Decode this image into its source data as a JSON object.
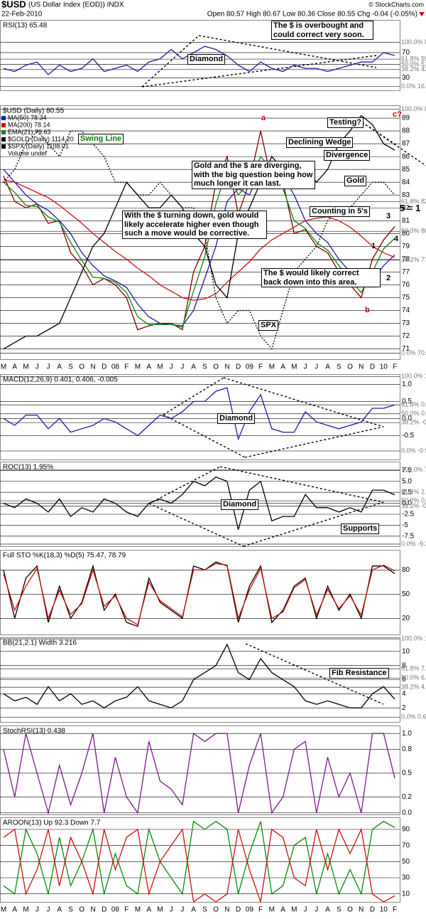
{
  "header": {
    "symbol": "$USD",
    "description": "(US Dollar Index (EOD)) INDX",
    "date": "22-Feb-2010",
    "quote": "Open 80.57  High 80.67  Low 80.36  Close 80.55  Chg -0.04 (-0.05%)",
    "credit": "© StockCharts.com"
  },
  "chart_data": [
    {
      "type": "line",
      "title": "RSI(13) 65.48",
      "ylim": [
        10,
        122
      ],
      "yticks": [
        30,
        70
      ],
      "grid": true,
      "series": [
        {
          "color": "#1f1fa8",
          "values": [
            45,
            40,
            50,
            55,
            35,
            50,
            40,
            45,
            60,
            40,
            45,
            50,
            40,
            55,
            60,
            75,
            60,
            70,
            80,
            75,
            65,
            50,
            40,
            55,
            45,
            40,
            50,
            45,
            45,
            40,
            45,
            50,
            55,
            55,
            70,
            65.48
          ]
        }
      ],
      "fib_levels": [
        {
          "value": 86.45,
          "label": "100.0% 86.45"
        },
        {
          "value": 59.64,
          "label": "61.8% 59.64"
        },
        {
          "value": 51.35,
          "label": "50.0% 51.35"
        },
        {
          "value": 43.06,
          "label": "38.2% 43.06"
        },
        {
          "value": 16.22,
          "label": "0.0% 16.22"
        }
      ],
      "annotations": [
        "The $ is overbought and could correct very soon.",
        "Diamond"
      ]
    },
    {
      "type": "line",
      "title": "$USD (Daily) 80.55",
      "ylim": [
        70.2,
        90
      ],
      "yticks": [
        71,
        72,
        73,
        74,
        75,
        76,
        77,
        78,
        79,
        80,
        81,
        82,
        83,
        84,
        85,
        86,
        87,
        88,
        89
      ],
      "grid": true,
      "categories": [
        "M",
        "A",
        "M",
        "J",
        "J",
        "A",
        "S",
        "O",
        "N",
        "D",
        "08",
        "F",
        "M",
        "A",
        "M",
        "J",
        "J",
        "A",
        "S",
        "O",
        "N",
        "D",
        "09",
        "F",
        "M",
        "A",
        "M",
        "J",
        "J",
        "A",
        "S",
        "O",
        "N",
        "D",
        "10",
        "F"
      ],
      "series": [
        {
          "name": "$USD (Daily) 80.55",
          "color": "#800000",
          "style": "solid",
          "values": [
            84.5,
            82.5,
            82,
            82.3,
            80.8,
            81,
            78.5,
            77.5,
            76,
            76.5,
            76,
            75,
            72.5,
            72.8,
            73,
            73,
            72.5,
            77,
            79,
            84,
            86,
            81.5,
            84,
            88,
            84,
            84,
            80,
            80.3,
            79,
            78.5,
            77,
            76,
            75,
            78,
            79.5,
            80.55
          ]
        },
        {
          "name": "MA(50) 78.34",
          "color": "#1c1cb0",
          "style": "solid",
          "values": [
            85,
            84,
            83,
            82.3,
            81.8,
            81,
            80,
            78.5,
            77.5,
            76.7,
            76.3,
            75.8,
            74.5,
            73.5,
            73,
            72.9,
            72.8,
            74,
            76.5,
            79,
            82.5,
            83.5,
            83,
            85,
            85,
            84.5,
            83,
            81,
            80,
            79.3,
            78,
            77,
            76.2,
            76.3,
            77.5,
            78.34
          ]
        },
        {
          "name": "MA(200) 78.14",
          "color": "#d01010",
          "style": "solid",
          "values": [
            84.2,
            84,
            83.6,
            83.2,
            82.8,
            82.2,
            81.5,
            80.8,
            80,
            79.3,
            78.6,
            78,
            77.3,
            76.7,
            76,
            75.5,
            75,
            74.8,
            74.9,
            75.3,
            76.2,
            77,
            77.8,
            78.8,
            79.5,
            80,
            80.5,
            81,
            81.2,
            81.3,
            81,
            80.5,
            79.8,
            79,
            78.5,
            78.14
          ]
        },
        {
          "name": "EMA(21) 79.63",
          "color": "#0a8a0a",
          "style": "solid",
          "values": [
            84,
            83.2,
            82.2,
            82.1,
            81.3,
            80.9,
            79.3,
            77.9,
            76.6,
            76.5,
            76.2,
            75.4,
            73.5,
            72.9,
            72.9,
            72.9,
            72.7,
            75.5,
            78.2,
            82.3,
            85,
            83,
            84,
            86,
            85,
            83.5,
            81,
            80.4,
            79.3,
            78.7,
            77.5,
            76.4,
            75.4,
            77,
            78.8,
            79.63
          ]
        },
        {
          "name": "$GOLD (Daily) 1114.20",
          "color": "#000000",
          "style": "solid",
          "values": [
            71,
            71.5,
            72,
            72,
            72.5,
            73,
            75,
            77,
            79,
            80,
            82,
            84,
            83,
            82,
            82,
            83,
            82,
            80,
            79,
            76,
            75,
            80,
            82,
            84,
            86,
            85,
            84,
            85,
            84,
            85,
            87,
            88,
            89.2,
            88.5,
            87,
            86.5
          ]
        },
        {
          "name": "$SPX (Daily) 1108.01",
          "color": "#000000",
          "style": "dotted",
          "values": [
            84,
            85,
            87,
            88,
            87,
            86,
            88,
            88,
            87,
            86,
            84,
            84,
            83,
            83,
            84,
            83,
            82,
            82,
            80,
            75,
            73,
            74,
            74,
            72,
            71,
            74,
            77,
            78,
            79,
            81,
            82,
            82,
            83,
            84,
            84,
            83
          ]
        }
      ],
      "notes": [
        "Volume undef"
      ],
      "fib_levels": [
        {
          "value": 89.69,
          "label": "100.0% 89.69"
        },
        {
          "value": 82.49,
          "label": "61.8% 82.49"
        },
        {
          "value": 80.17,
          "label": "50.0% 80.17"
        },
        {
          "value": 77.92,
          "label": "38.2% 77.92"
        },
        {
          "value": 70.66,
          "label": "0.0% 70.66"
        }
      ],
      "annotations": [
        "Swing Line",
        "a",
        "c?",
        "b",
        "Testing?",
        "Declining Wedge",
        "Divergence",
        "Gold",
        "Gold and the $ are diverging, with the big question being how much longer it can last.",
        "With the $ turning down, gold would likely accelerate higher even though such a move would be corrective.",
        "Counting in 5's",
        "5 = 1",
        "1",
        "2",
        "3",
        "4",
        "The $ would likely correct back down into this area.",
        "SPX"
      ]
    },
    {
      "type": "line",
      "title": "MACD(12,26,9) 0.401, 0.406, -0.005",
      "ylim": [
        -1.2,
        1.3
      ],
      "yticks": [
        -0.5,
        {
          "value": 0,
          "label": "0.0"
        },
        0.5,
        {
          "value": 1,
          "label": "1.0"
        }
      ],
      "grid": true,
      "series": [
        {
          "color": "#1c1cb0",
          "values": [
            0,
            -0.2,
            0.1,
            0.1,
            -0.3,
            0,
            -0.4,
            -0.3,
            -0.2,
            0,
            -0.1,
            -0.3,
            -0.5,
            -0.2,
            0.1,
            0,
            0.2,
            0.5,
            0.5,
            0.8,
            0.9,
            -0.6,
            0.2,
            0.7,
            -0.3,
            -0.4,
            -0.4,
            0.2,
            -0.1,
            -0.2,
            -0.3,
            -0.2,
            -0.1,
            0.3,
            0.3,
            0.401
          ]
        }
      ],
      "fib_levels": [
        {
          "value": 1.23,
          "label": "100.0% 1.23"
        },
        {
          "value": 0.4,
          "label": "61.8% 0.40"
        },
        {
          "value": 0.14,
          "label": "50.0% 0.14"
        },
        {
          "value": -0.12,
          "label": "38.2% -0.12"
        },
        {
          "value": -0.95,
          "label": "0.0% -0.95"
        }
      ],
      "annotations": [
        "Diamond"
      ]
    },
    {
      "type": "line",
      "title": "ROC(13) 1.95%",
      "ylim": [
        -9.8,
        9.5
      ],
      "yticks": [
        -7.5,
        -5.0,
        -2.5,
        {
          "value": 0,
          "label": "0.0"
        },
        2.5,
        {
          "value": 5,
          "label": "5.0"
        },
        7.5
      ],
      "grid": true,
      "series": [
        {
          "color": "#000000",
          "values": [
            0,
            -1,
            1,
            0,
            -2,
            1,
            -3,
            -1,
            -2,
            1,
            0,
            -2,
            -3,
            0,
            1,
            0,
            2,
            5,
            4,
            6,
            5,
            -6,
            3,
            5,
            -4,
            -3,
            -3,
            2,
            -1,
            -1,
            -2,
            -1,
            -2,
            3,
            3,
            1.95
          ]
        }
      ],
      "fib_levels": [
        {
          "value": 7.6,
          "label": "100.0% 7.6"
        },
        {
          "value": 2.48,
          "label": "61.8% 2.48"
        },
        {
          "value": 0.56,
          "label": "50.0% 0.56"
        },
        {
          "value": -0.63,
          "label": "38.2% -0.63"
        },
        {
          "value": -9.3,
          "label": "0.0% -9.3"
        }
      ],
      "annotations": [
        "Diamond",
        "Supports"
      ]
    },
    {
      "type": "line",
      "title": "Full STO %K(18,3) %D(5) 75.47, 78.79",
      "ylim": [
        0,
        105
      ],
      "yticks": [
        20,
        50,
        80
      ],
      "grid": true,
      "series": [
        {
          "color": "#000000",
          "values": [
            80,
            20,
            70,
            85,
            15,
            60,
            20,
            40,
            85,
            30,
            50,
            15,
            10,
            70,
            40,
            30,
            20,
            85,
            80,
            90,
            85,
            15,
            60,
            85,
            15,
            30,
            60,
            70,
            20,
            60,
            30,
            50,
            20,
            85,
            85,
            75.47
          ]
        },
        {
          "color": "#d01010",
          "values": [
            75,
            30,
            60,
            82,
            20,
            55,
            25,
            38,
            80,
            35,
            48,
            20,
            12,
            65,
            42,
            32,
            22,
            80,
            80,
            88,
            86,
            20,
            55,
            82,
            20,
            28,
            58,
            68,
            24,
            56,
            32,
            48,
            24,
            80,
            86,
            78.79
          ]
        }
      ]
    },
    {
      "type": "line",
      "title": "BB(21,2.1) Width 3.216",
      "ylim": [
        0,
        12
      ],
      "yticks": [
        2,
        4,
        6,
        8,
        10
      ],
      "grid": true,
      "series": [
        {
          "color": "#000000",
          "values": [
            4,
            3,
            3.5,
            2.5,
            5,
            3,
            4,
            2.5,
            3,
            2,
            3,
            3.5,
            5,
            3,
            2.5,
            2,
            3,
            6,
            7,
            8,
            11,
            7,
            6,
            9,
            7,
            6,
            5,
            3,
            2.5,
            3,
            2.5,
            2,
            2,
            4,
            5,
            3.216
          ]
        }
      ],
      "fib_levels": [
        {
          "value": 11.78,
          "label": "100.0% 11.78"
        },
        {
          "value": 7.54,
          "label": "61.8% 7.54"
        },
        {
          "value": 6.23,
          "label": "50.0% 6.23"
        },
        {
          "value": 4.92,
          "label": "38.2% 4.92"
        },
        {
          "value": 0.68,
          "label": "0.0% 0.68"
        }
      ],
      "annotations": [
        "Fib Resistance"
      ]
    },
    {
      "type": "line",
      "title": "StochRSI(13) 0.438",
      "ylim": [
        -0.02,
        1.1
      ],
      "yticks": [
        {
          "value": 0,
          "label": "0.0"
        },
        0.2,
        0.5,
        0.8,
        {
          "value": 1,
          "label": "1.0"
        }
      ],
      "grid": true,
      "series": [
        {
          "color": "#7a1a8a",
          "values": [
            0.8,
            0.2,
            1,
            0.5,
            0,
            0.6,
            0.1,
            0.5,
            1,
            0,
            0.7,
            0.2,
            0,
            0.9,
            0.4,
            0.3,
            0.1,
            1,
            0.9,
            1,
            1,
            0,
            0.6,
            1,
            0,
            0.2,
            0.8,
            0.9,
            0,
            0.7,
            0.2,
            0.5,
            0,
            1,
            1,
            0.438
          ]
        }
      ]
    },
    {
      "type": "line",
      "title": "AROON(13) Up 92.3 Down 7.7",
      "ylim": [
        0,
        105
      ],
      "yticks": [
        10,
        30,
        50,
        70,
        90
      ],
      "grid": true,
      "categories": [
        "M",
        "A",
        "M",
        "J",
        "J",
        "A",
        "S",
        "O",
        "N",
        "D",
        "08",
        "F",
        "M",
        "A",
        "M",
        "J",
        "J",
        "A",
        "S",
        "O",
        "N",
        "D",
        "09",
        "F",
        "M",
        "A",
        "M",
        "J",
        "J",
        "A",
        "S",
        "O",
        "N",
        "D",
        "10",
        "F"
      ],
      "series": [
        {
          "color": "#0a8a0a",
          "values": [
            20,
            10,
            90,
            60,
            10,
            80,
            20,
            50,
            90,
            10,
            60,
            20,
            10,
            90,
            50,
            30,
            10,
            100,
            90,
            100,
            90,
            10,
            60,
            100,
            10,
            20,
            70,
            80,
            10,
            60,
            10,
            40,
            10,
            90,
            100,
            92.3
          ]
        },
        {
          "color": "#d01010",
          "values": [
            80,
            90,
            10,
            40,
            90,
            20,
            80,
            50,
            10,
            90,
            40,
            80,
            90,
            10,
            50,
            70,
            90,
            0,
            10,
            0,
            10,
            90,
            40,
            0,
            90,
            80,
            30,
            20,
            90,
            40,
            90,
            60,
            90,
            10,
            0,
            7.7
          ]
        }
      ]
    }
  ]
}
